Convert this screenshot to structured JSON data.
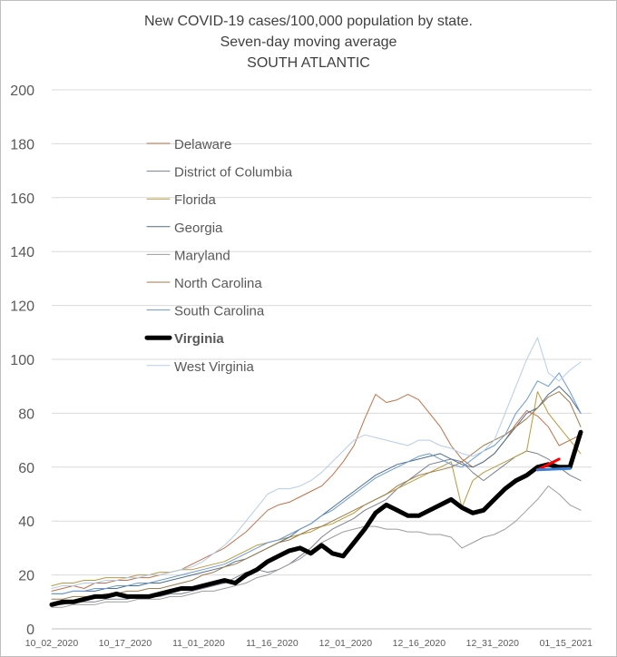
{
  "chart_data": {
    "type": "line",
    "title_lines": [
      "New COVID-19 cases/100,000 population by state.",
      "Seven-day moving average",
      "SOUTH ATLANTIC"
    ],
    "xlabel": "",
    "ylabel": "",
    "ylim": [
      0,
      200
    ],
    "yticks": [
      "0",
      "20",
      "40",
      "60",
      "80",
      "100",
      "120",
      "140",
      "160",
      "180",
      "200"
    ],
    "xticks": [
      "10_02_2020",
      "10_17_2020",
      "11_01_2020",
      "11_16_2020",
      "12_01_2020",
      "12_16_2020",
      "12_31_2020",
      "01_15_2021"
    ],
    "x_start": "10_02_2020",
    "x_end": "01_18_2021",
    "grid": "horizontal",
    "legend_position": "upper-left",
    "sample_step_days": 3,
    "series": [
      {
        "name": "Delaware",
        "color": "#c0704a",
        "width": 1,
        "values": [
          14,
          15,
          16,
          15,
          17,
          17,
          18,
          18,
          19,
          19,
          20,
          21,
          22,
          24,
          26,
          28,
          30,
          33,
          36,
          40,
          44,
          46,
          47,
          49,
          51,
          53,
          57,
          62,
          68,
          78,
          87,
          84,
          85,
          87,
          85,
          80,
          75,
          68,
          63,
          60,
          62,
          65,
          70,
          76,
          81,
          79,
          75,
          68,
          70,
          72
        ]
      },
      {
        "name": "District of Columbia",
        "color": "#7a8190",
        "width": 1,
        "values": [
          9,
          9,
          10,
          10,
          10,
          11,
          11,
          11,
          12,
          12,
          12,
          13,
          13,
          14,
          15,
          16,
          17,
          19,
          21,
          22,
          21,
          22,
          24,
          27,
          30,
          34,
          37,
          39,
          41,
          44,
          46,
          48,
          52,
          55,
          58,
          61,
          62,
          63,
          62,
          58,
          55,
          58,
          61,
          64,
          66,
          65,
          63,
          60,
          57,
          55
        ]
      },
      {
        "name": "Florida",
        "color": "#b89a3e",
        "width": 1,
        "values": [
          16,
          17,
          17,
          18,
          18,
          19,
          19,
          19,
          20,
          20,
          21,
          21,
          22,
          22,
          23,
          24,
          25,
          27,
          29,
          31,
          32,
          33,
          34,
          35,
          36,
          38,
          39,
          41,
          43,
          46,
          48,
          50,
          52,
          54,
          56,
          58,
          60,
          62,
          45,
          55,
          58,
          60,
          62,
          64,
          66,
          88,
          80,
          75,
          70,
          65
        ]
      },
      {
        "name": "Georgia",
        "color": "#4d6e90",
        "width": 1,
        "values": [
          13,
          13,
          14,
          14,
          14,
          15,
          15,
          16,
          16,
          17,
          17,
          18,
          19,
          20,
          21,
          22,
          23,
          25,
          26,
          28,
          30,
          32,
          34,
          37,
          39,
          42,
          45,
          48,
          51,
          54,
          57,
          59,
          61,
          62,
          63,
          64,
          65,
          63,
          61,
          60,
          62,
          65,
          70,
          75,
          80,
          82,
          87,
          90,
          86,
          80
        ]
      },
      {
        "name": "Maryland",
        "color": "#9c9c9c",
        "width": 1,
        "values": [
          8,
          8,
          9,
          9,
          9,
          10,
          10,
          10,
          11,
          11,
          11,
          12,
          12,
          13,
          14,
          14,
          15,
          16,
          17,
          19,
          20,
          22,
          24,
          26,
          29,
          32,
          34,
          36,
          37,
          38,
          38,
          37,
          37,
          36,
          36,
          35,
          35,
          34,
          30,
          32,
          34,
          35,
          37,
          40,
          44,
          48,
          53,
          50,
          46,
          44
        ]
      },
      {
        "name": "North Carolina",
        "color": "#a07a48",
        "width": 1,
        "values": [
          11,
          11,
          12,
          12,
          12,
          13,
          13,
          14,
          14,
          15,
          15,
          16,
          17,
          18,
          20,
          21,
          23,
          24,
          26,
          28,
          30,
          32,
          33,
          35,
          37,
          38,
          40,
          42,
          44,
          46,
          48,
          50,
          53,
          55,
          57,
          58,
          59,
          60,
          62,
          65,
          68,
          70,
          72,
          75,
          78,
          82,
          86,
          88,
          84,
          75
        ]
      },
      {
        "name": "South Carolina",
        "color": "#6a9ad0",
        "width": 1,
        "values": [
          13,
          13,
          14,
          14,
          15,
          15,
          16,
          16,
          17,
          17,
          18,
          19,
          20,
          21,
          22,
          23,
          24,
          26,
          28,
          30,
          32,
          33,
          35,
          37,
          39,
          42,
          44,
          47,
          50,
          53,
          56,
          58,
          60,
          62,
          64,
          65,
          63,
          61,
          60,
          63,
          66,
          68,
          72,
          80,
          85,
          92,
          90,
          95,
          88,
          80
        ]
      },
      {
        "name": "Virginia",
        "color": "#000000",
        "width": 5,
        "bold": true,
        "values": [
          9,
          10,
          10,
          11,
          12,
          12,
          13,
          12,
          12,
          12,
          13,
          14,
          15,
          15,
          16,
          17,
          18,
          17,
          20,
          22,
          25,
          27,
          29,
          30,
          28,
          31,
          28,
          27,
          32,
          37,
          43,
          46,
          44,
          42,
          42,
          44,
          46,
          48,
          45,
          43,
          44,
          48,
          52,
          55,
          57,
          60,
          61,
          60,
          60,
          73
        ]
      },
      {
        "name": "West Virginia",
        "color": "#b5cde8",
        "width": 1,
        "values": [
          15,
          16,
          16,
          17,
          17,
          18,
          18,
          19,
          19,
          20,
          20,
          21,
          22,
          23,
          25,
          28,
          31,
          35,
          40,
          45,
          50,
          52,
          52,
          53,
          55,
          58,
          62,
          66,
          70,
          72,
          71,
          70,
          69,
          68,
          70,
          70,
          68,
          67,
          65,
          64,
          66,
          70,
          80,
          90,
          100,
          108,
          95,
          92,
          96,
          99
        ]
      }
    ],
    "extra_segments": [
      {
        "color": "#ff0000",
        "points": [
          [
            45,
            59
          ],
          [
            47,
            63
          ]
        ]
      },
      {
        "color": "#3a7fd5",
        "points": [
          [
            45,
            59
          ],
          [
            48,
            59.5
          ]
        ]
      }
    ]
  }
}
